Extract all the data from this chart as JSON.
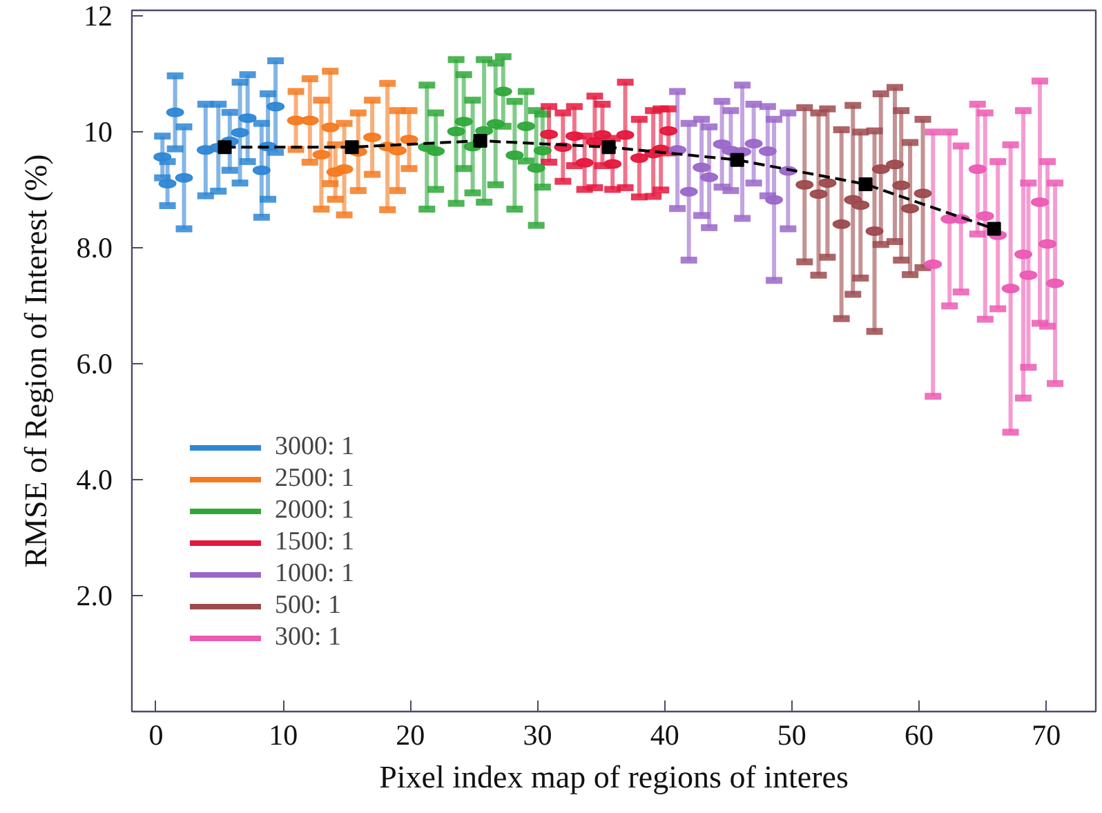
{
  "chart_data": {
    "type": "scatter",
    "xlabel": "Pixel index map of regions of interes",
    "ylabel": "RMSE of Region of Interest (%)",
    "xlim": [
      -1.9,
      73.9
    ],
    "ylim": [
      0,
      12.1
    ],
    "xticks": [
      0,
      10,
      20,
      30,
      40,
      50,
      60,
      70
    ],
    "yticks": [
      {
        "value": 2,
        "label": "2.0"
      },
      {
        "value": 4,
        "label": "4.0"
      },
      {
        "value": 6,
        "label": "6.0"
      },
      {
        "value": 8,
        "label": "8.0"
      },
      10,
      12
    ],
    "grid": false,
    "legend": "bottom left",
    "series": [
      {
        "name": "3000: 1",
        "color": "#2e86d4",
        "marker": "circle",
        "x": [
          0.5,
          0.9,
          1.5,
          2.2,
          3.9,
          4.9,
          5.8,
          6.6,
          7.2,
          8.3,
          8.8,
          9.4
        ],
        "values": [
          9.57,
          9.11,
          10.34,
          9.21,
          9.69,
          9.73,
          9.84,
          9.99,
          10.24,
          9.34,
          9.75,
          10.44
        ],
        "errors": [
          0.36,
          0.38,
          0.63,
          0.88,
          0.79,
          0.75,
          0.5,
          0.87,
          0.75,
          0.81,
          0.91,
          0.79
        ]
      },
      {
        "name": "2500: 1",
        "color": "#f47a20",
        "marker": "circle",
        "x": [
          11.0,
          12.1,
          13.0,
          13.7,
          14.1,
          14.8,
          15.9,
          17.0,
          18.2,
          19.0,
          19.9
        ],
        "values": [
          10.2,
          10.2,
          9.61,
          10.08,
          9.31,
          9.36,
          9.66,
          9.91,
          9.75,
          9.68,
          9.87
        ],
        "errors": [
          0.5,
          0.72,
          0.94,
          0.97,
          0.47,
          0.79,
          0.67,
          0.64,
          1.09,
          0.69,
          0.5
        ]
      },
      {
        "name": "2000: 1",
        "color": "#2fa83a",
        "marker": "circle",
        "x": [
          21.3,
          22.0,
          23.6,
          24.2,
          24.9,
          25.8,
          26.7,
          27.3,
          28.2,
          29.1,
          29.9,
          30.4
        ],
        "values": [
          9.74,
          9.67,
          10.01,
          10.18,
          9.75,
          10.02,
          10.14,
          10.7,
          9.6,
          10.1,
          9.38,
          9.68
        ],
        "errors": [
          1.07,
          0.66,
          1.24,
          0.81,
          0.8,
          1.23,
          1.05,
          0.6,
          0.93,
          0.6,
          0.99,
          0.63
        ]
      },
      {
        "name": "1500: 1",
        "color": "#e5173d",
        "marker": "circle",
        "x": [
          30.9,
          32.0,
          32.9,
          33.7,
          34.5,
          35.1,
          35.9,
          36.9,
          38.0,
          39.1,
          39.7,
          40.3
        ],
        "values": [
          9.96,
          9.74,
          9.93,
          9.47,
          9.83,
          9.95,
          9.45,
          9.95,
          9.55,
          9.63,
          9.7,
          10.02
        ],
        "errors": [
          0.48,
          0.59,
          0.51,
          0.46,
          0.79,
          0.53,
          0.44,
          0.91,
          0.67,
          0.74,
          0.7,
          0.38
        ]
      },
      {
        "name": "1000: 1",
        "color": "#9a67c9",
        "marker": "circle",
        "x": [
          41.0,
          41.9,
          42.9,
          43.5,
          44.5,
          45.2,
          46.1,
          47.0,
          48.1,
          48.6,
          49.7
        ],
        "values": [
          9.69,
          8.97,
          9.39,
          9.22,
          9.79,
          9.68,
          9.66,
          9.8,
          9.67,
          8.83,
          9.33
        ],
        "errors": [
          1.01,
          1.18,
          0.83,
          0.87,
          0.74,
          0.69,
          1.15,
          0.68,
          0.77,
          1.39,
          1.0
        ]
      },
      {
        "name": "500: 1",
        "color": "#9c4a4d",
        "marker": "circle",
        "x": [
          51.0,
          52.1,
          52.8,
          53.9,
          54.8,
          55.4,
          56.5,
          57.0,
          58.1,
          58.6,
          59.3,
          60.3
        ],
        "values": [
          9.09,
          8.93,
          9.12,
          8.41,
          8.83,
          8.74,
          8.29,
          9.36,
          9.44,
          9.08,
          8.68,
          8.94
        ],
        "errors": [
          1.33,
          1.4,
          1.28,
          1.63,
          1.63,
          1.26,
          1.73,
          1.3,
          1.33,
          1.29,
          1.14,
          1.28
        ]
      },
      {
        "name": "300: 1",
        "color": "#ec5ab4",
        "marker": "circle",
        "x": [
          61.1,
          62.4,
          63.3,
          64.6,
          65.2,
          66.2,
          67.2,
          68.2,
          68.6,
          69.5,
          70.1,
          70.7
        ],
        "values": [
          7.72,
          8.5,
          8.5,
          9.36,
          8.55,
          8.22,
          7.3,
          7.89,
          7.53,
          8.79,
          8.07,
          7.39
        ],
        "errors": [
          2.28,
          1.5,
          1.26,
          1.12,
          1.78,
          1.27,
          2.48,
          2.48,
          1.59,
          2.09,
          1.42,
          1.73
        ]
      },
      {
        "type": "line",
        "color": "#000000",
        "line_style": "dashed",
        "marker": "square",
        "x": [
          5.4,
          15.4,
          25.5,
          35.6,
          45.7,
          55.8,
          65.9
        ],
        "values": [
          9.74,
          9.74,
          9.85,
          9.74,
          9.52,
          9.1,
          8.33
        ]
      }
    ]
  }
}
